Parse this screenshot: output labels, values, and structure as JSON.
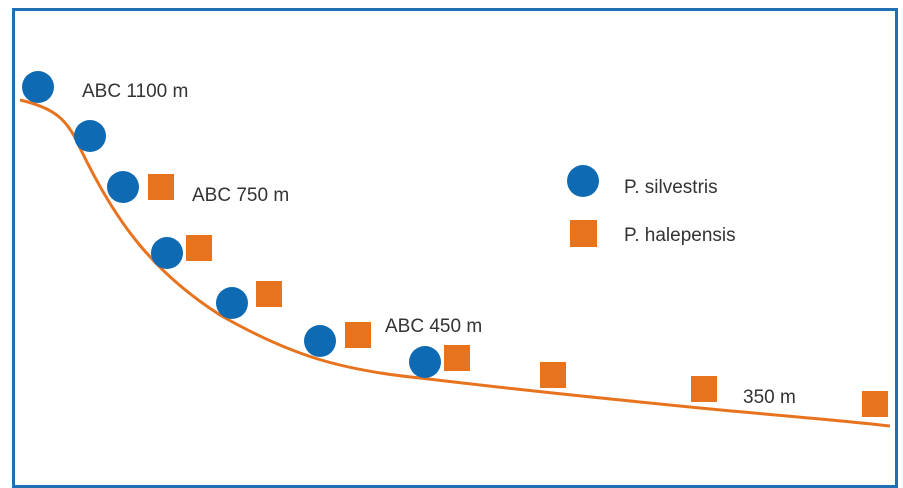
{
  "colors": {
    "border": "#1f6fb2",
    "slope": "#e8731f",
    "silvestris": "#0f6ab4",
    "halepensis": "#e8731f"
  },
  "labels": {
    "abc_1100": "ABC 1100 m",
    "abc_750": "ABC 750 m",
    "abc_450": "ABC 450 m",
    "m_350": "350 m"
  },
  "legend": {
    "silvestris": "P. silvestris",
    "halepensis": "P. halepensis"
  }
}
